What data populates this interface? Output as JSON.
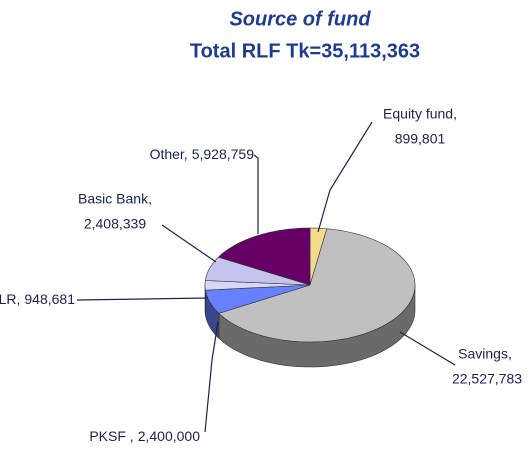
{
  "chart_data": {
    "type": "pie3d",
    "title": "Source of fund",
    "subtitle": "Total RLF Tk=35,113,363",
    "categories": [
      "Equity fund,",
      "Savings,",
      "PKSF ,",
      "LLR,",
      "Basic Bank,",
      "Other,"
    ],
    "values": [
      899801,
      22527783,
      2400000,
      948681,
      2408339,
      5928759
    ],
    "value_labels": [
      "899,801",
      "22,527,783",
      "2,400,000",
      "948,681",
      "2,408,339",
      "5,928,759"
    ],
    "colors": [
      "#f2dc8c",
      "#c0c0c0",
      "#6680ff",
      "#d8d8f4",
      "#c4c4ee",
      "#660066"
    ]
  }
}
